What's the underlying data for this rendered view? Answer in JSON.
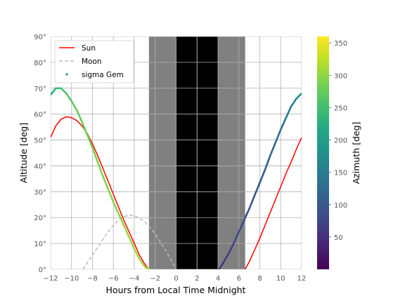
{
  "chart_data": {
    "type": "line",
    "xlabel": "Hours from Local Time Midnight",
    "ylabel": "Altitude [deg]",
    "colorbar_label": "Azimuth [deg]",
    "xlim": [
      -12,
      12
    ],
    "ylim": [
      0,
      90
    ],
    "x_ticks": [
      -12,
      -10,
      -8,
      -6,
      -4,
      -2,
      0,
      2,
      4,
      6,
      8,
      10,
      12
    ],
    "x_tick_labels": [
      "−12",
      "−10",
      "−8",
      "−6",
      "−4",
      "−2",
      "0",
      "2",
      "4",
      "6",
      "8",
      "10",
      "12"
    ],
    "y_ticks": [
      0,
      10,
      20,
      30,
      40,
      50,
      60,
      70,
      80,
      90
    ],
    "y_tick_labels": [
      "0°",
      "10°",
      "20°",
      "30°",
      "40°",
      "50°",
      "60°",
      "70°",
      "80°",
      "90°"
    ],
    "colorbar_range": [
      0,
      360
    ],
    "colorbar_ticks": [
      50,
      100,
      150,
      200,
      250,
      300,
      350
    ],
    "colorbar_tick_labels": [
      "50",
      "100",
      "150",
      "200",
      "250",
      "300",
      "350"
    ],
    "grid": true,
    "legend_position": "top-left",
    "twilight": {
      "night_colors": {
        "twilight": "#808080",
        "night": "#000000"
      },
      "twilight_spans": [
        [
          -2.6,
          4.0
        ],
        [
          -0.1,
          6.6
        ]
      ],
      "night_span": [
        0.0,
        4.0
      ],
      "dividers": [
        2.0
      ]
    },
    "series": [
      {
        "name": "Sun",
        "color": "#ff0000",
        "style": "solid",
        "x": [
          -12,
          -11.5,
          -11,
          -10.5,
          -10,
          -9.5,
          -9,
          -8.5,
          -8,
          -7.5,
          -7,
          -6.5,
          -6,
          -5.5,
          -5,
          -4.5,
          -4,
          -3.5,
          -3,
          -2.6,
          6.6,
          7,
          7.5,
          8,
          8.5,
          9,
          9.5,
          10,
          10.5,
          11,
          11.5,
          12
        ],
        "y": [
          51,
          55.5,
          58,
          59,
          58.6,
          57.5,
          55.5,
          52.5,
          48.5,
          44,
          39,
          34,
          29,
          24,
          19,
          14.5,
          10,
          5.5,
          2,
          0,
          0,
          3,
          7.5,
          12,
          17,
          22,
          27,
          32,
          37,
          41.5,
          46.5,
          51
        ]
      },
      {
        "name": "Moon",
        "color": "#bbbbbb",
        "style": "dashed",
        "x": [
          -8.9,
          -8.5,
          -8,
          -7.5,
          -7,
          -6.5,
          -6,
          -5.5,
          -5,
          -4.5,
          -4,
          -3.5,
          -3,
          -2.5,
          -2,
          -1.5,
          -1,
          -0.5,
          0
        ],
        "y": [
          0,
          2.5,
          5.5,
          8.5,
          11.5,
          14.5,
          17,
          19,
          20.3,
          21,
          20.7,
          19.8,
          18.3,
          16.3,
          13.6,
          10.4,
          7.2,
          3.8,
          0
        ]
      },
      {
        "name": "sigma Gem",
        "color": "#21908d",
        "style": "points",
        "x": [
          -12,
          -11.5,
          -11,
          -10.5,
          -10,
          -9.5,
          -9,
          -8.5,
          -8,
          -7.5,
          -7,
          -6.5,
          -6,
          -5.5,
          -5,
          -4.5,
          -4,
          -3.5,
          -3,
          -2.6,
          4.1,
          4.5,
          5,
          5.5,
          6,
          6.5,
          7,
          7.5,
          8,
          8.5,
          9,
          9.5,
          10,
          10.5,
          11,
          11.5,
          12
        ],
        "y": [
          67.5,
          70,
          70,
          68,
          65,
          61.5,
          57,
          52,
          47,
          41.5,
          36,
          31,
          26,
          21.5,
          17,
          12.5,
          8,
          4,
          1,
          0,
          0,
          2.5,
          6,
          10,
          14.5,
          19,
          23.5,
          28.5,
          33.5,
          38.5,
          44,
          49,
          54,
          58.5,
          63,
          66,
          68
        ],
        "azimuth": [
          225,
          238,
          250,
          260,
          268,
          274,
          279,
          283,
          287,
          290,
          293,
          296,
          298,
          300,
          303,
          305,
          307,
          309,
          311,
          312,
          50,
          58,
          66,
          74,
          80,
          86,
          92,
          98,
          104,
          110,
          118,
          126,
          134,
          144,
          156,
          170,
          185
        ]
      }
    ]
  }
}
